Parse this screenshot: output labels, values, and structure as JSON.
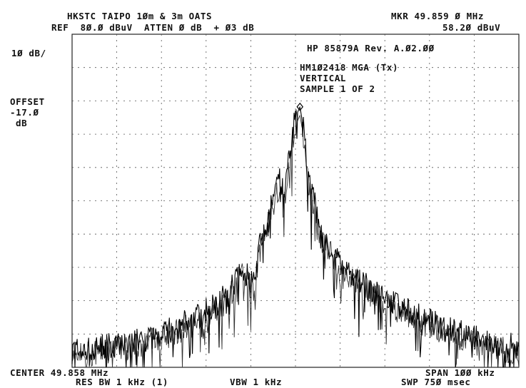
{
  "header": {
    "title": "HKSTC TAIPO 1Øm & 3m OATS",
    "ref_line": "REF  8Ø.Ø dBuV  ATTEN Ø dB  + Ø3 dB",
    "marker_freq": "MKR 49.859 Ø MHz",
    "marker_level": "58.2Ø dBuV"
  },
  "left_panel": {
    "scale": "1Ø dB/",
    "offset_label": "OFFSET",
    "offset_value": "-17.Ø",
    "offset_unit": "dB"
  },
  "annotations": {
    "instrument": "HP 85879A Rev. A.Ø2.ØØ",
    "device": "HM1Ø2418 MGA (Tx)",
    "polarization": "VERTICAL",
    "sample": "SAMPLE 1 OF 2"
  },
  "footer": {
    "center": "CENTER 49.858 MHz",
    "res_bw": "RES BW 1 kHz (1)",
    "vbw": "VBW 1 kHz",
    "span": "SPAN 1ØØ kHz",
    "sweep": "SWP 75Ø msec"
  },
  "chart_data": {
    "type": "line",
    "title": "HKSTC TAIPO 1Øm & 3m OATS",
    "xlabel": "",
    "ylabel": "",
    "x_unit": "MHz",
    "y_unit": "dBuV",
    "xlim": [
      49.808,
      49.908
    ],
    "ylim": [
      -20,
      80
    ],
    "grid": true,
    "marker": {
      "x": 49.859,
      "y": 58.2
    },
    "series": [
      {
        "x": [
          49.808,
          49.813,
          49.818,
          49.823,
          49.828,
          49.833,
          49.838,
          49.843,
          49.846,
          49.8485,
          49.85,
          49.851,
          49.853,
          49.8545,
          49.8555,
          49.857,
          49.858,
          49.859,
          49.86,
          49.861,
          49.8625,
          49.864,
          49.866,
          49.868,
          49.873,
          49.878,
          49.883,
          49.888,
          49.893,
          49.898,
          49.903,
          49.908
        ],
        "y": [
          -15,
          -14,
          -13,
          -12,
          -10,
          -7,
          -3,
          2,
          10,
          5,
          16,
          21,
          30,
          37,
          31,
          47,
          55,
          58.2,
          50,
          35,
          28,
          18,
          16,
          10,
          5,
          1,
          -3,
          -6,
          -9,
          -11,
          -13,
          -14
        ]
      }
    ]
  }
}
